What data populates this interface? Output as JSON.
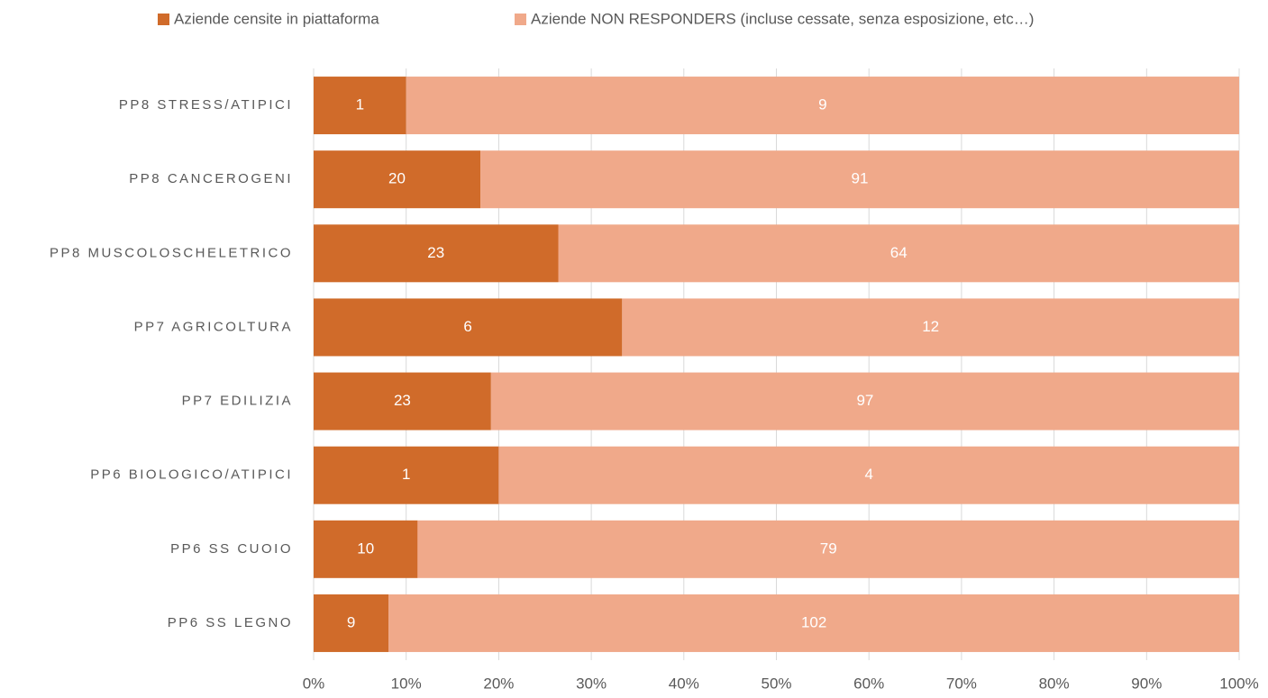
{
  "chart_data": {
    "type": "bar",
    "orientation": "horizontal",
    "stacked": "percent",
    "categories": [
      "PP8 STRESS/ATIPICI",
      "PP8 CANCEROGENI",
      "PP8 MUSCOLOSCHELETRICO",
      "PP7 AGRICOLTURA",
      "PP7 EDILIZIA",
      "PP6 BIOLOGICO/ATIPICI",
      "PP6 SS CUOIO",
      "PP6 SS LEGNO"
    ],
    "series": [
      {
        "name": "Aziende censite in piattaforma",
        "color": "#d06b2a",
        "values": [
          1,
          20,
          23,
          6,
          23,
          1,
          10,
          9
        ]
      },
      {
        "name": "Aziende NON RESPONDERS (incluse cessate, senza esposizione, etc…)",
        "color": "#f0a98a",
        "values": [
          9,
          91,
          64,
          12,
          97,
          4,
          79,
          102
        ]
      }
    ],
    "xlim": [
      0,
      100
    ],
    "xticks": [
      {
        "value": 0,
        "label": "0%"
      },
      {
        "value": 10,
        "label": "10%"
      },
      {
        "value": 20,
        "label": "20%"
      },
      {
        "value": 30,
        "label": "30%"
      },
      {
        "value": 40,
        "label": "40%"
      },
      {
        "value": 50,
        "label": "50%"
      },
      {
        "value": 60,
        "label": "60%"
      },
      {
        "value": 70,
        "label": "70%"
      },
      {
        "value": 80,
        "label": "80%"
      },
      {
        "value": 90,
        "label": "90%"
      },
      {
        "value": 100,
        "label": "100%"
      }
    ],
    "grid": true,
    "legend": "top",
    "data_labels": true
  }
}
